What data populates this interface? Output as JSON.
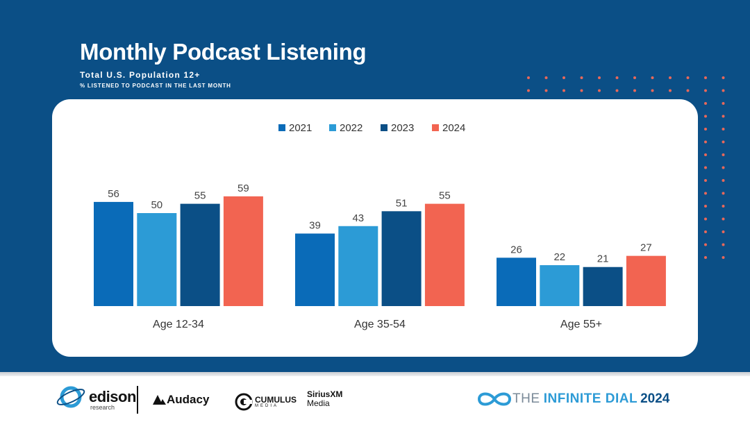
{
  "header": {
    "title": "Monthly Podcast Listening",
    "subtitle": "Total U.S. Population 12+",
    "subtitle2": "% LISTENED TO PODCAST IN THE LAST MONTH"
  },
  "colors": {
    "banner": "#0b4f86",
    "dots": "#e8685a",
    "series": [
      "#0a6bb8",
      "#2c9bd6",
      "#0b4f86",
      "#f26451"
    ]
  },
  "chart_data": {
    "type": "bar",
    "title": "Monthly Podcast Listening",
    "categories": [
      "Age 12-34",
      "Age 35-54",
      "Age 55+"
    ],
    "series": [
      {
        "name": "2021",
        "values": [
          56,
          39,
          26
        ]
      },
      {
        "name": "2022",
        "values": [
          50,
          43,
          22
        ]
      },
      {
        "name": "2023",
        "values": [
          55,
          51,
          21
        ]
      },
      {
        "name": "2024",
        "values": [
          59,
          55,
          27
        ]
      }
    ],
    "ylim": [
      0,
      59
    ],
    "grid": false,
    "legend": "top-center",
    "data_labels": true
  },
  "footer": {
    "edison_name": "edison",
    "edison_sub": "research",
    "audacy": "Audacy",
    "cumulus_name": "CUMULUS",
    "cumulus_sub": "MEDIA",
    "sirius_name": "SiriusXM",
    "sirius_sub": "Media",
    "dial_text": "THE",
    "dial_infinite": "INFINITE DIAL",
    "dial_year": "2024"
  }
}
